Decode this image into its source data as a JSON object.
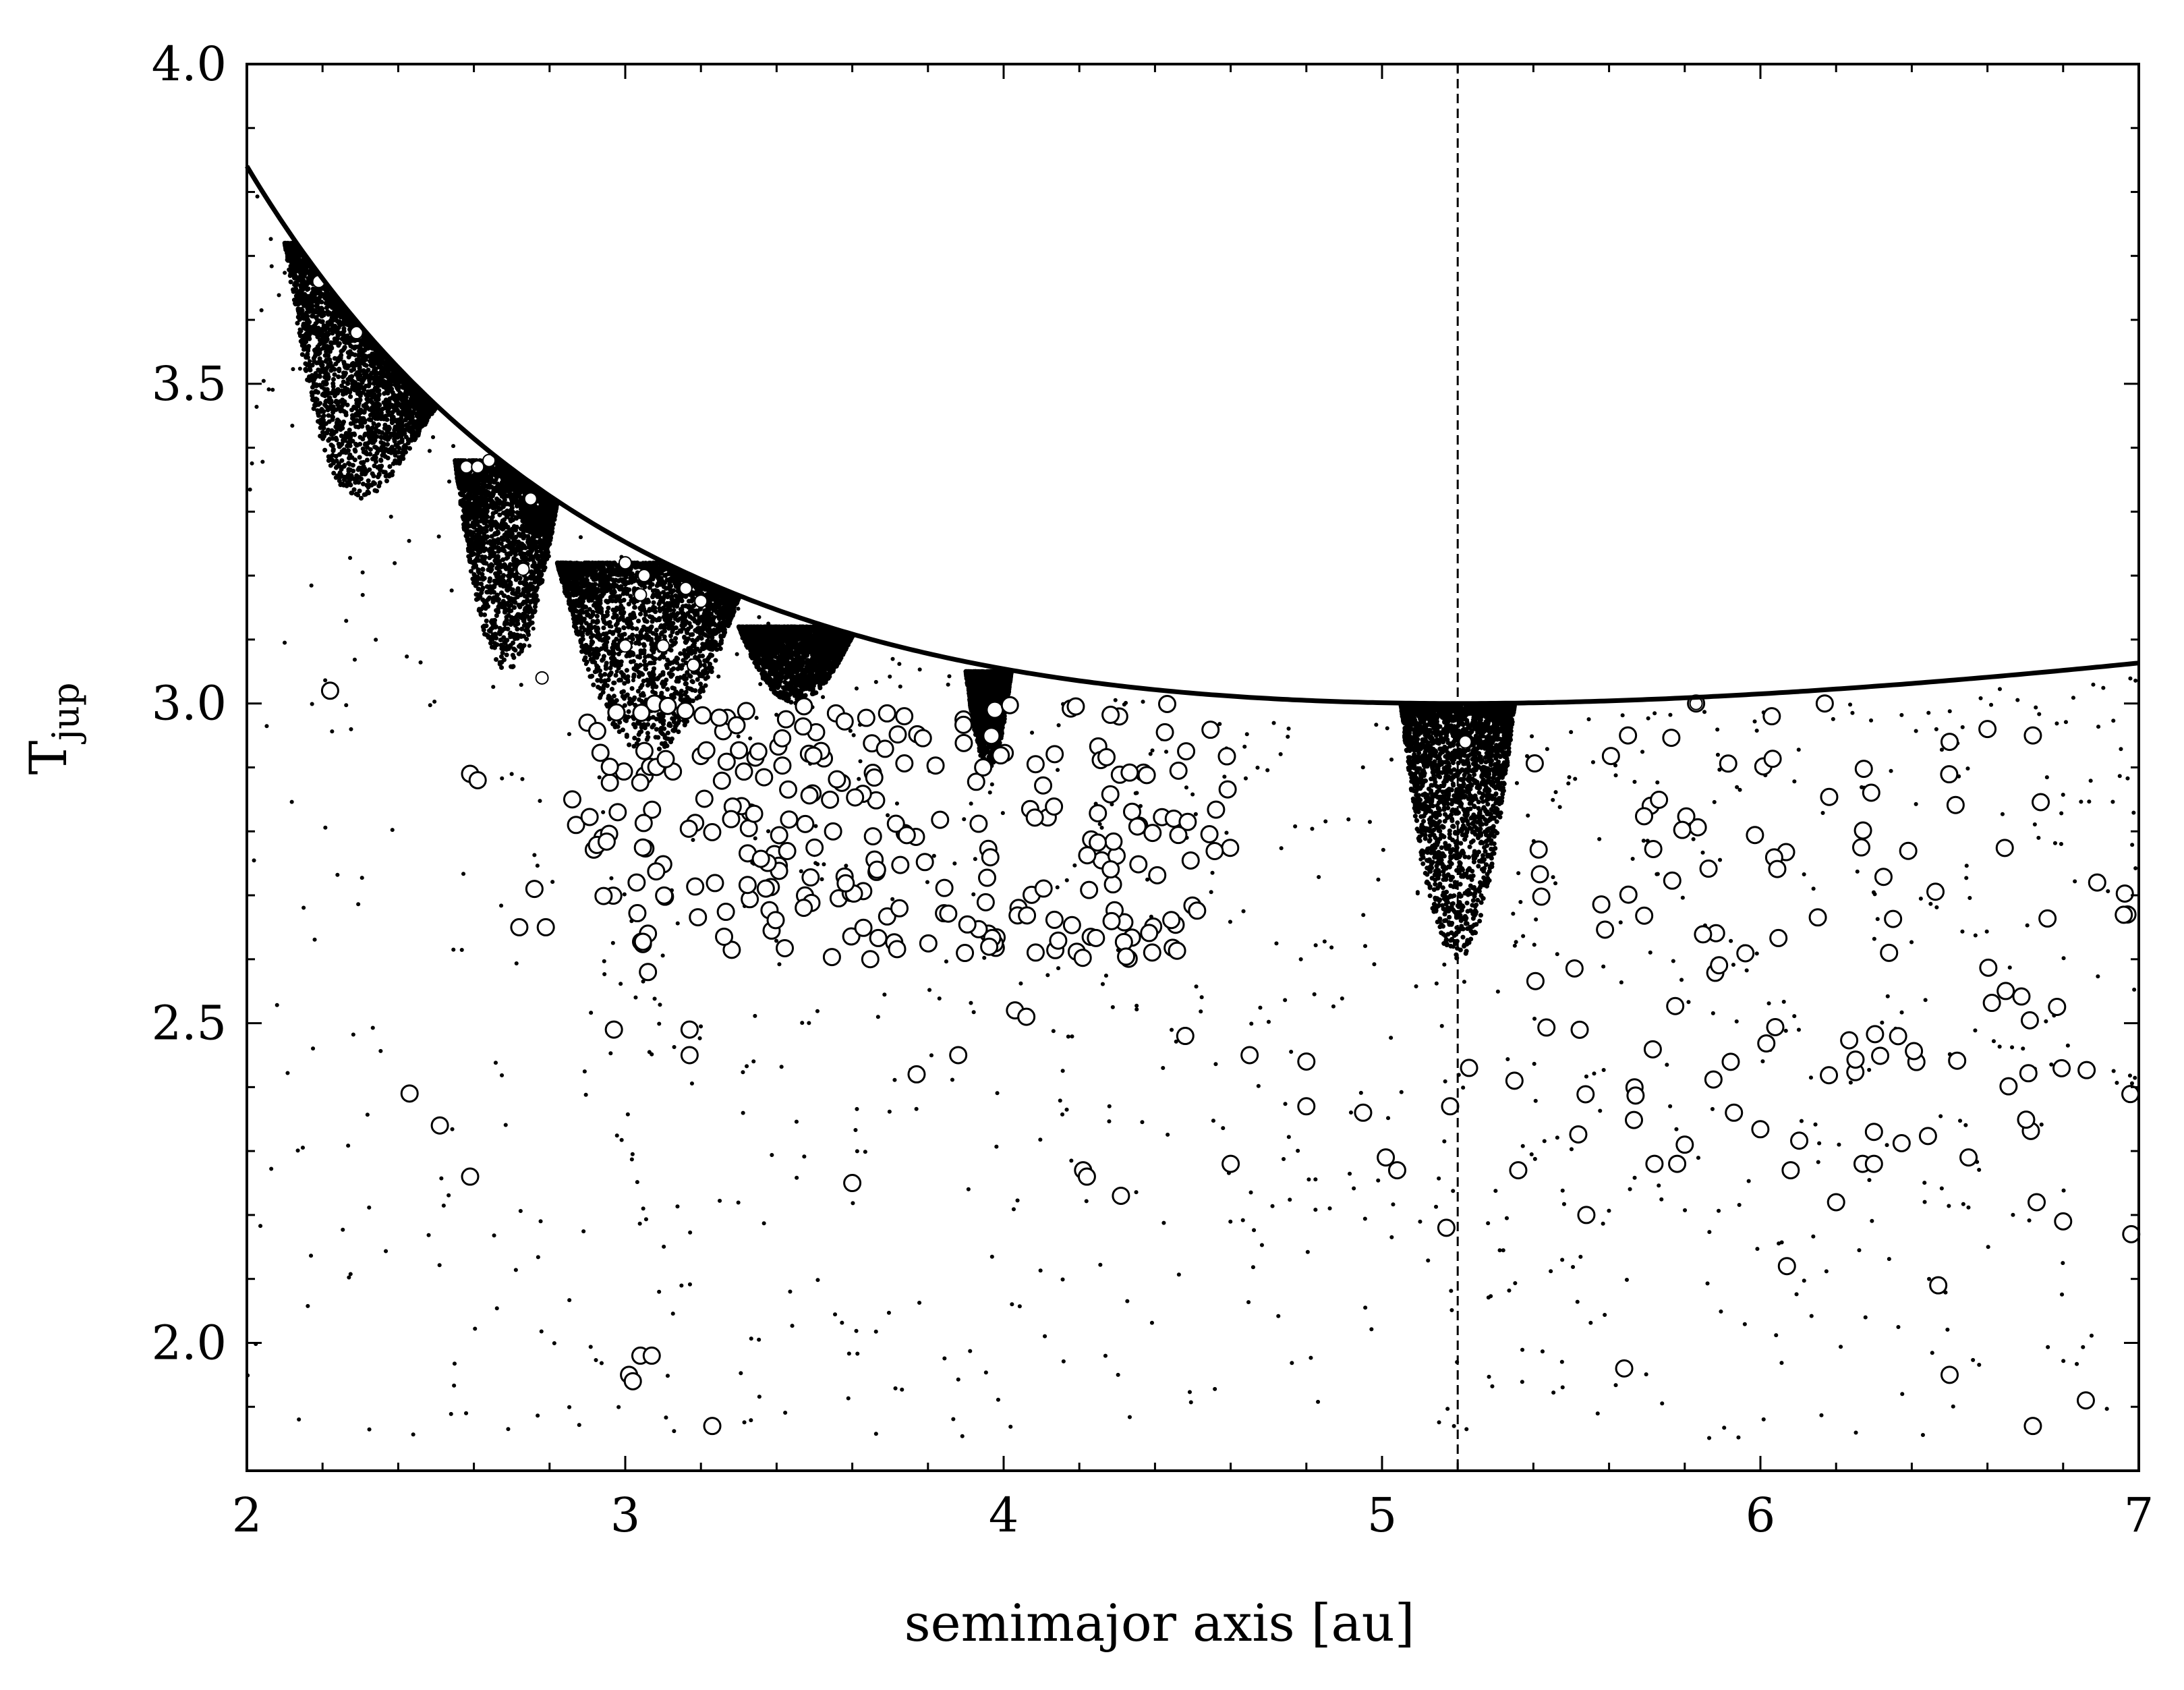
{
  "chart_data": {
    "type": "scatter",
    "xlabel": "semimajor axis [au]",
    "ylabel_main": "T",
    "ylabel_sub": "jup",
    "xlim": [
      2,
      7
    ],
    "ylim": [
      1.8,
      4.0
    ],
    "x_major_ticks": [
      2,
      3,
      4,
      5,
      6,
      7
    ],
    "x_tick_labels": [
      "2",
      "3",
      "4",
      "5",
      "6",
      "7"
    ],
    "y_major_ticks": [
      2.0,
      2.5,
      3.0,
      3.5,
      4.0
    ],
    "y_tick_labels": [
      "2.0",
      "2.5",
      "3.0",
      "3.5",
      "4.0"
    ],
    "x_minor_step": 0.2,
    "y_minor_step": 0.1,
    "reference_line": {
      "x": 5.2,
      "style": "dashed"
    },
    "envelope": {
      "description_formula": "T = a_J/a + 2*sqrt(a/a_J)",
      "a_J": 5.2
    },
    "dense_clusters": [
      {
        "x_range": [
          2.1,
          2.5
        ],
        "y_range": [
          3.32,
          3.72
        ]
      },
      {
        "x_range": [
          2.55,
          2.82
        ],
        "y_range": [
          3.05,
          3.38
        ]
      },
      {
        "x_range": [
          2.82,
          3.3
        ],
        "y_range": [
          2.92,
          3.22
        ]
      },
      {
        "x_range": [
          3.3,
          3.6
        ],
        "y_range": [
          3.0,
          3.12
        ]
      },
      {
        "x_range": [
          3.9,
          4.02
        ],
        "y_range": [
          2.9,
          3.05
        ]
      },
      {
        "x_range": [
          5.05,
          5.35
        ],
        "y_range": [
          2.6,
          3.0
        ]
      }
    ],
    "open_circles_sample": [
      [
        2.22,
        3.02
      ],
      [
        2.43,
        2.39
      ],
      [
        2.51,
        2.34
      ],
      [
        2.59,
        2.26
      ],
      [
        2.59,
        2.89
      ],
      [
        2.61,
        2.88
      ],
      [
        2.72,
        2.65
      ],
      [
        2.76,
        2.71
      ],
      [
        2.79,
        2.65
      ],
      [
        2.86,
        2.85
      ],
      [
        2.87,
        2.81
      ],
      [
        2.9,
        2.97
      ],
      [
        2.94,
        2.79
      ],
      [
        2.97,
        2.49
      ],
      [
        2.98,
        2.83
      ],
      [
        3.01,
        1.95
      ],
      [
        3.02,
        1.94
      ],
      [
        3.04,
        1.98
      ],
      [
        3.07,
        1.98
      ],
      [
        3.03,
        2.72
      ],
      [
        3.06,
        2.64
      ],
      [
        3.06,
        2.58
      ],
      [
        3.17,
        2.49
      ],
      [
        3.17,
        2.45
      ],
      [
        3.23,
        1.87
      ],
      [
        3.6,
        2.25
      ],
      [
        3.77,
        2.42
      ],
      [
        3.88,
        2.45
      ],
      [
        3.96,
        2.64
      ],
      [
        4.03,
        2.52
      ],
      [
        4.06,
        2.51
      ],
      [
        4.21,
        2.27
      ],
      [
        4.22,
        2.26
      ],
      [
        4.31,
        2.23
      ],
      [
        4.48,
        2.48
      ],
      [
        4.6,
        2.28
      ],
      [
        4.65,
        2.45
      ],
      [
        4.8,
        2.44
      ],
      [
        4.8,
        2.37
      ],
      [
        4.95,
        2.36
      ],
      [
        5.01,
        2.29
      ],
      [
        5.04,
        2.27
      ],
      [
        5.17,
        2.18
      ],
      [
        5.18,
        2.37
      ],
      [
        5.23,
        2.43
      ],
      [
        5.35,
        2.41
      ],
      [
        5.36,
        2.27
      ],
      [
        5.54,
        2.2
      ],
      [
        5.64,
        1.96
      ],
      [
        5.72,
        2.28
      ],
      [
        5.78,
        2.28
      ],
      [
        5.8,
        2.31
      ],
      [
        5.93,
        2.36
      ],
      [
        6.07,
        2.12
      ],
      [
        6.08,
        2.27
      ],
      [
        6.2,
        2.22
      ],
      [
        6.27,
        2.28
      ],
      [
        6.3,
        2.28
      ],
      [
        6.47,
        2.09
      ],
      [
        6.5,
        1.95
      ],
      [
        6.55,
        2.29
      ],
      [
        6.72,
        1.87
      ],
      [
        6.73,
        2.22
      ],
      [
        6.8,
        2.19
      ],
      [
        6.86,
        1.91
      ],
      [
        6.98,
        2.17
      ],
      [
        6.3,
        2.33
      ],
      [
        6.34,
        2.61
      ],
      [
        6.5,
        2.94
      ],
      [
        6.6,
        2.96
      ],
      [
        6.72,
        2.95
      ],
      [
        6.89,
        2.72
      ],
      [
        6.97,
        2.67
      ],
      [
        6.03,
        2.98
      ],
      [
        6.17,
        3.0
      ],
      [
        5.83,
        3.0
      ],
      [
        5.65,
        2.95
      ],
      [
        5.71,
        2.84
      ]
    ],
    "filled_circles_sample": [
      [
        2.19,
        3.66
      ],
      [
        2.29,
        3.58
      ],
      [
        2.58,
        3.37
      ],
      [
        2.61,
        3.37
      ],
      [
        2.64,
        3.38
      ],
      [
        2.75,
        3.32
      ],
      [
        2.73,
        3.21
      ],
      [
        2.78,
        3.04
      ],
      [
        3.0,
        3.22
      ],
      [
        3.04,
        3.17
      ],
      [
        3.05,
        3.2
      ],
      [
        3.1,
        3.09
      ],
      [
        3.16,
        3.18
      ],
      [
        3.2,
        3.16
      ],
      [
        3.18,
        3.06
      ],
      [
        3.0,
        3.09
      ],
      [
        5.22,
        2.94
      ],
      [
        5.83,
        3.0
      ]
    ]
  }
}
